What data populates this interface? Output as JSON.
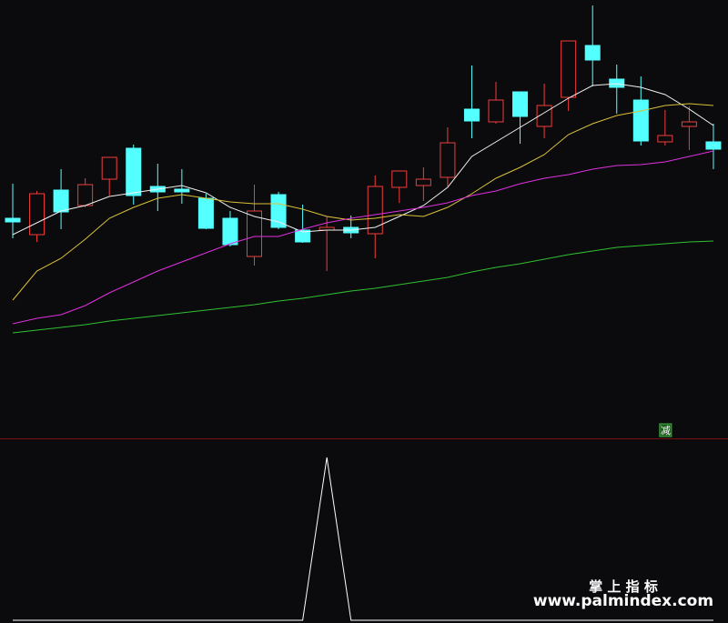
{
  "chart_data": [
    {
      "type": "candlestick",
      "up_color": "#f03c3c",
      "down_color": "#54ffff",
      "ylim": [
        0,
        480
      ],
      "open": [
        240,
        222,
        271,
        254,
        283,
        317,
        275,
        272,
        262,
        240,
        198,
        266,
        227,
        227,
        230,
        223,
        274,
        276,
        285,
        360,
        346,
        379,
        341,
        373,
        430,
        393,
        370,
        324,
        341,
        324
      ],
      "high": [
        278,
        270,
        294,
        284,
        307,
        321,
        300,
        294,
        267,
        248,
        277,
        269,
        255,
        242,
        243,
        287,
        292,
        296,
        340,
        408,
        390,
        379,
        388,
        435,
        474,
        409,
        396,
        359,
        363,
        344
      ],
      "low": [
        218,
        214,
        228,
        252,
        265,
        255,
        248,
        256,
        228,
        209,
        188,
        228,
        213,
        182,
        218,
        196,
        257,
        259,
        275,
        328,
        344,
        322,
        328,
        358,
        385,
        355,
        320,
        320,
        315,
        294
      ],
      "close": [
        236,
        267,
        247,
        277,
        307,
        265,
        269,
        269,
        229,
        211,
        248,
        230,
        214,
        230,
        224,
        275,
        292,
        283,
        323,
        347,
        370,
        352,
        364,
        435,
        414,
        384,
        325,
        331,
        346,
        316
      ],
      "series": [
        {
          "color": "#f0f0f0",
          "values": [
            222,
            235,
            248,
            254,
            264,
            268,
            272,
            276,
            268,
            252,
            242,
            236,
            225,
            227,
            227,
            230,
            242,
            254,
            274,
            308,
            324,
            340,
            356,
            372,
            386,
            388,
            384,
            376,
            360,
            342
          ]
        },
        {
          "color": "#d8c038",
          "values": [
            150,
            182,
            196,
            217,
            240,
            252,
            262,
            266,
            262,
            258,
            256,
            256,
            250,
            242,
            238,
            240,
            244,
            242,
            252,
            267,
            284,
            296,
            310,
            332,
            344,
            353,
            358,
            364,
            366,
            364
          ]
        },
        {
          "color": "#e030e0",
          "values": [
            124,
            130,
            134,
            144,
            158,
            170,
            182,
            192,
            202,
            212,
            220,
            220,
            228,
            235,
            240,
            244,
            248,
            252,
            257,
            265,
            270,
            278,
            284,
            288,
            294,
            298,
            299,
            302,
            308,
            314
          ]
        },
        {
          "color": "#30c030",
          "values": [
            114,
            117,
            120,
            123,
            127,
            130,
            133,
            136,
            139,
            142,
            145,
            149,
            152,
            156,
            160,
            163,
            167,
            171,
            175,
            181,
            186,
            190,
            195,
            200,
            204,
            208,
            210,
            212,
            214,
            215
          ]
        }
      ],
      "annotations": [
        {
          "text": "减",
          "index": 27
        }
      ]
    },
    {
      "type": "line",
      "ylim": [
        0,
        1
      ],
      "series": [
        {
          "color": "#ffffff",
          "values": [
            0,
            0,
            0,
            0,
            0,
            0,
            0,
            0,
            0,
            0,
            0,
            0,
            0,
            1,
            0,
            0,
            0,
            0,
            0,
            0,
            0,
            0,
            0,
            0,
            0,
            0,
            0,
            0,
            0,
            0
          ]
        }
      ]
    }
  ],
  "watermark": {
    "title": "掌 上 指 标",
    "url": "www.palmindex.com"
  }
}
